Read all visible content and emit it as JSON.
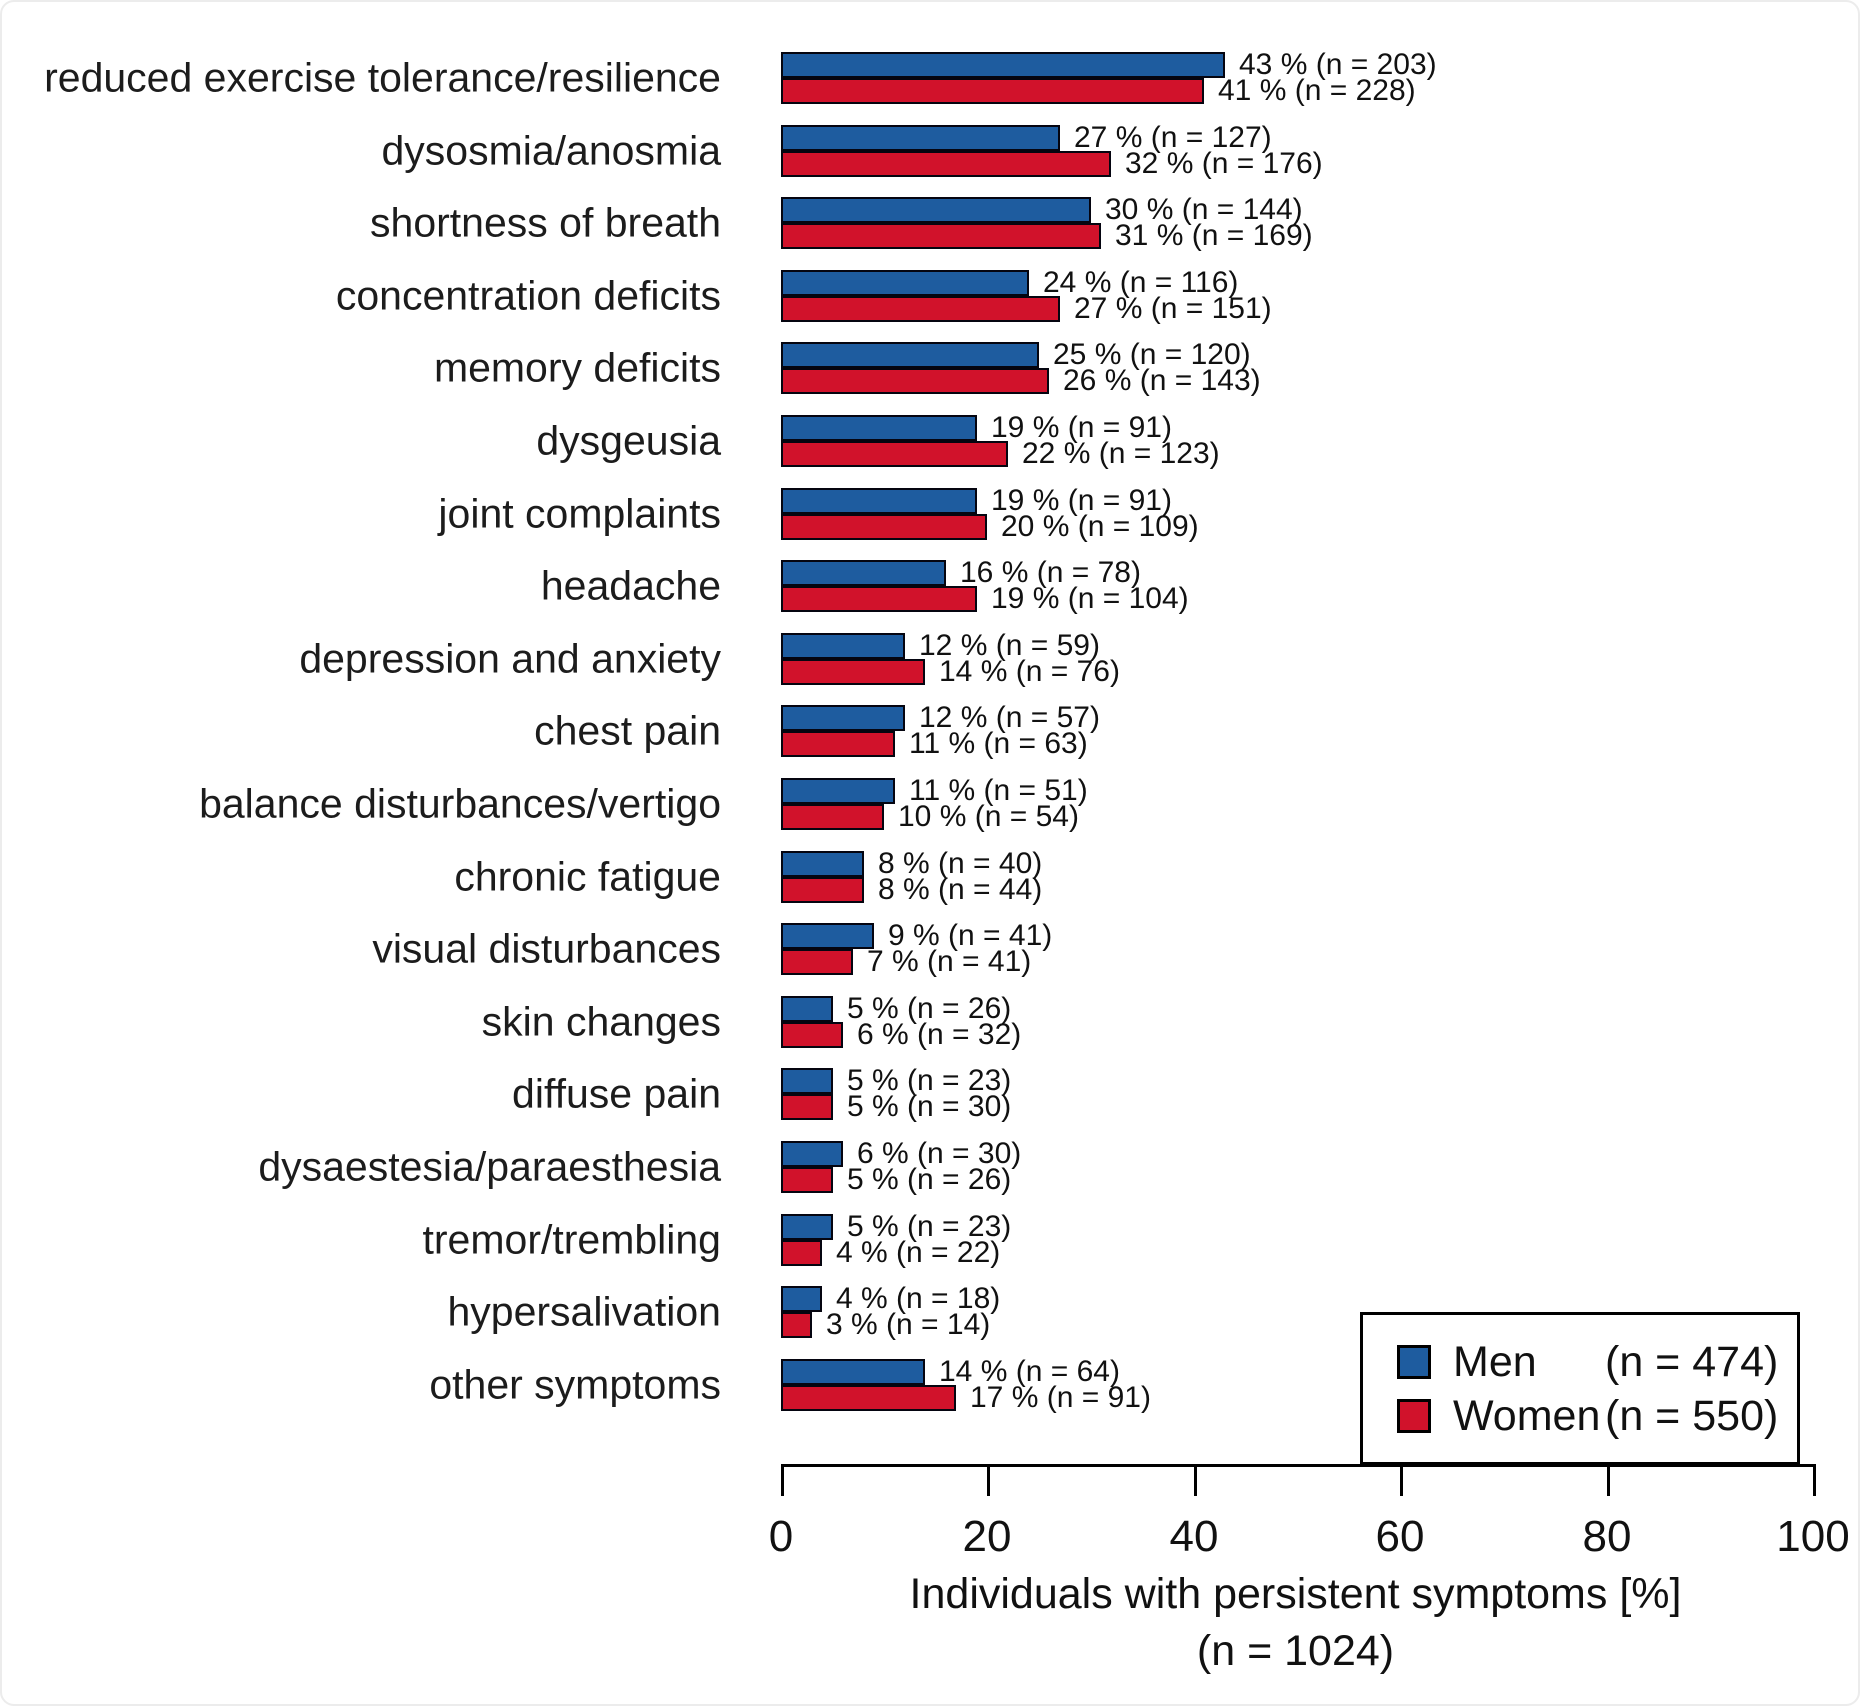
{
  "figure": {
    "background": "#ffffff",
    "text_color": "#111111",
    "bar_outline_color": "#050510"
  },
  "chart_data": {
    "type": "bar",
    "orientation": "horizontal",
    "title": "",
    "xlabel": "Individuals with persistent symptoms [%]",
    "xlabel_sub": "(n = 1024)",
    "xlim": [
      0,
      100
    ],
    "xticks": [
      0,
      20,
      40,
      60,
      80,
      100
    ],
    "grid": false,
    "legend_position": "bottom-right",
    "categories": [
      "reduced exercise tolerance/resilience",
      "dysosmia/anosmia",
      "shortness of breath",
      "concentration deficits",
      "memory deficits",
      "dysgeusia",
      "joint complaints",
      "headache",
      "depression and anxiety",
      "chest pain",
      "balance disturbances/vertigo",
      "chronic fatigue",
      "visual disturbances",
      "skin changes",
      "diffuse pain",
      "dysaestesia/paraesthesia",
      "tremor/trembling",
      "hypersalivation",
      "other symptoms"
    ],
    "series": [
      {
        "name": "Men",
        "legend_count": "(n = 474)",
        "color": "#1E5C9F",
        "values": [
          43,
          27,
          30,
          24,
          25,
          19,
          19,
          16,
          12,
          12,
          11,
          8,
          9,
          5,
          5,
          6,
          5,
          4,
          14
        ],
        "counts": [
          203,
          127,
          144,
          116,
          120,
          91,
          91,
          78,
          59,
          57,
          51,
          40,
          41,
          26,
          23,
          30,
          23,
          18,
          64
        ],
        "labels": [
          "43 % (n = 203)",
          "27 % (n = 127)",
          "30 % (n = 144)",
          "24 % (n = 116)",
          "25 % (n = 120)",
          "19 % (n = 91)",
          "19 % (n = 91)",
          "16 % (n = 78)",
          "12 % (n = 59)",
          "12 % (n = 57)",
          "11 % (n = 51)",
          "8 % (n = 40)",
          "9 % (n = 41)",
          "5 % (n = 26)",
          "5 % (n = 23)",
          "6 % (n = 30)",
          "5 % (n = 23)",
          "4 % (n = 18)",
          "14 % (n = 64)"
        ]
      },
      {
        "name": "Women",
        "legend_count": "(n = 550)",
        "color": "#D1122B",
        "values": [
          41,
          32,
          31,
          27,
          26,
          22,
          20,
          19,
          14,
          11,
          10,
          8,
          7,
          6,
          5,
          5,
          4,
          3,
          17
        ],
        "counts": [
          228,
          176,
          169,
          151,
          143,
          123,
          109,
          104,
          76,
          63,
          54,
          44,
          41,
          32,
          30,
          26,
          22,
          14,
          91
        ],
        "labels": [
          "41 % (n = 228)",
          "32 % (n = 176)",
          "31 % (n = 169)",
          "27 % (n = 151)",
          "26 % (n = 143)",
          "22 % (n = 123)",
          "20 % (n = 109)",
          "19 % (n = 104)",
          "14 % (n = 76)",
          "11 % (n = 63)",
          "10 % (n = 54)",
          "8 % (n = 44)",
          "7 % (n = 41)",
          "6 % (n = 32)",
          "5 % (n = 30)",
          "5 % (n = 26)",
          "4 % (n = 22)",
          "3 % (n = 14)",
          "17 % (n = 91)"
        ]
      }
    ],
    "legend": {
      "entries": [
        {
          "label": "Men",
          "count": "(n = 474)",
          "color": "#1E5C9F"
        },
        {
          "label": "Women",
          "count": "(n = 550)",
          "color": "#D1122B"
        }
      ]
    }
  }
}
